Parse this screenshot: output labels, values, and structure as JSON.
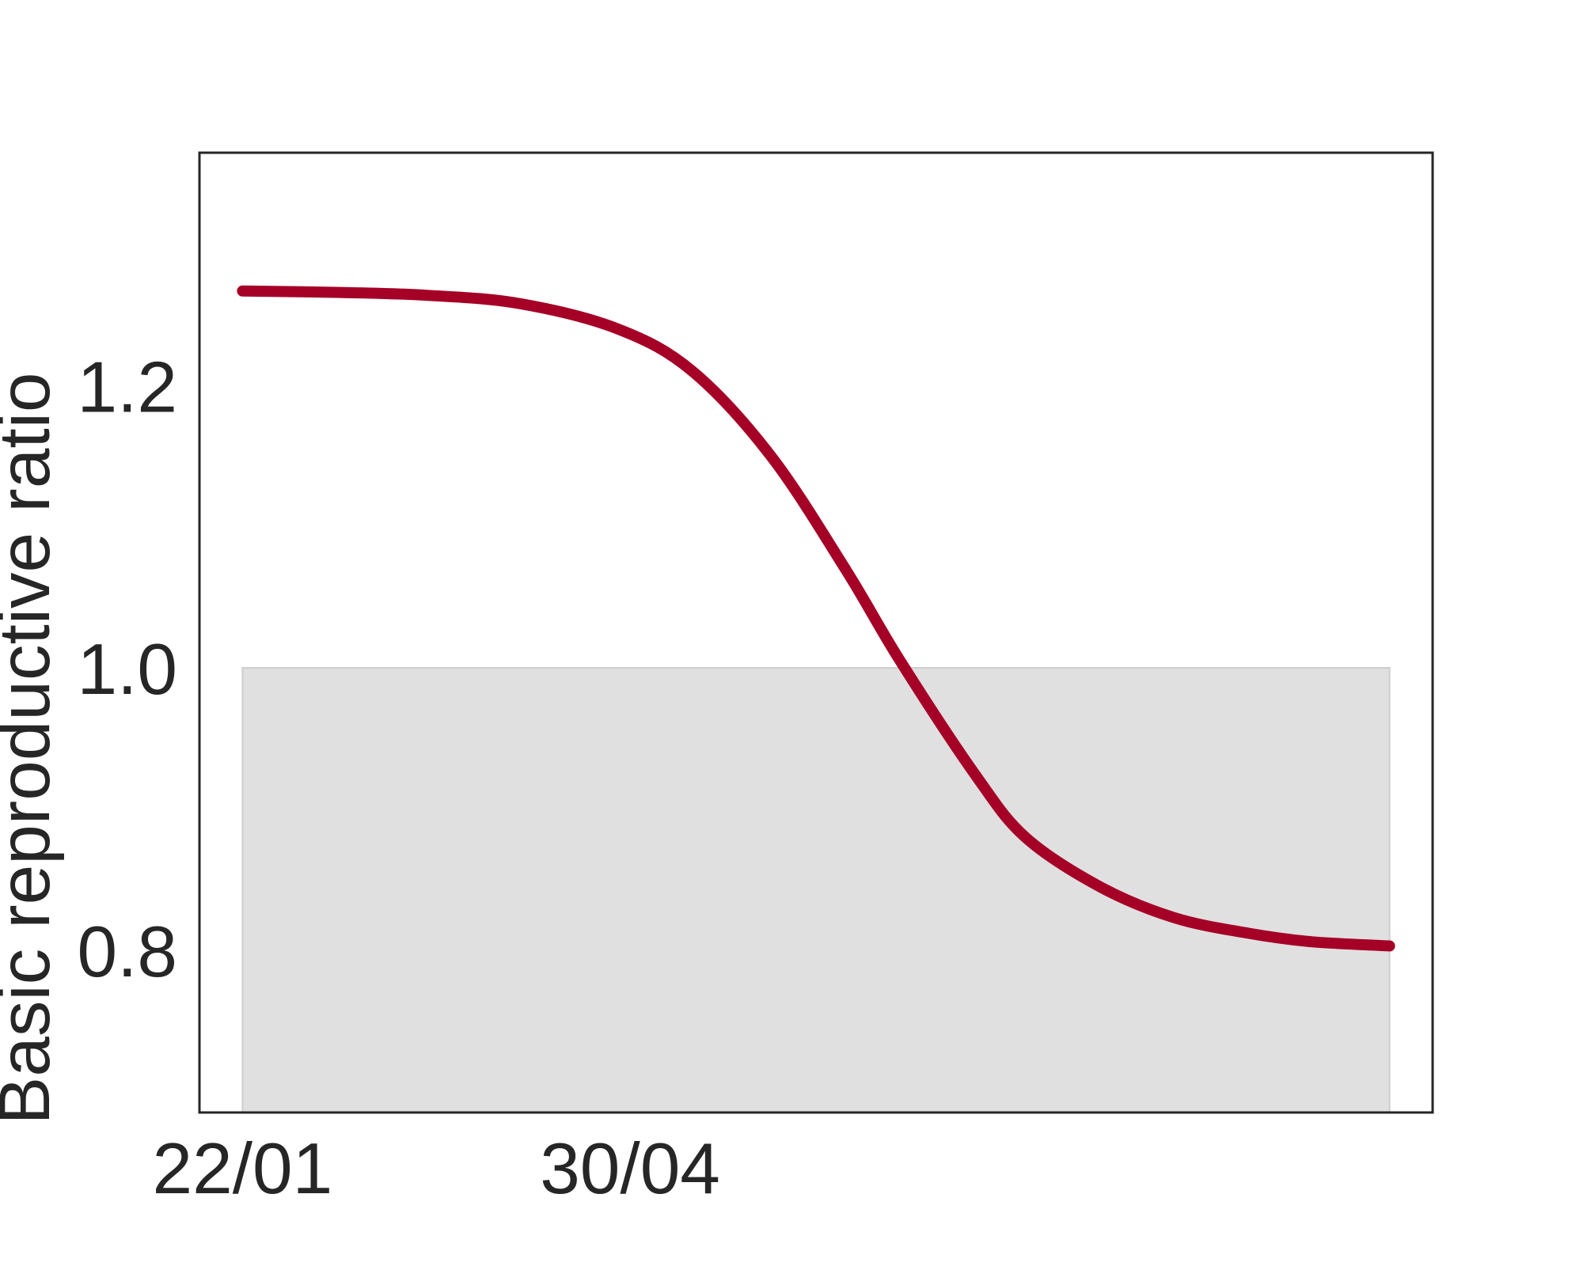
{
  "chart_data": {
    "type": "line",
    "title": "",
    "xlabel": "",
    "ylabel": "Basic reproductive ratio",
    "x_is_date": true,
    "xlim": [
      "2020-01-11",
      "2020-11-21"
    ],
    "ylim": [
      0.685,
      1.365
    ],
    "xticks": [
      {
        "value": "2020-01-22",
        "label": "22/01"
      },
      {
        "value": "2020-04-30",
        "label": "30/04"
      }
    ],
    "yticks": [
      {
        "value": 0.8,
        "label": "0.8"
      },
      {
        "value": 1.0,
        "label": "1.0"
      },
      {
        "value": 1.2,
        "label": "1.2"
      }
    ],
    "grid": false,
    "legend": "none",
    "colors": {
      "line": "#a50026",
      "shade_fill": "#e0e0e0",
      "shade_edge": "#cccccc",
      "frame": "#262626"
    },
    "shaded_region": {
      "x_start": "2020-01-22",
      "x_end": "2020-11-10",
      "y_start": 0.685,
      "y_end": 1.0
    },
    "series": [
      {
        "x": [
          "2020-01-22",
          "2020-02-16",
          "2020-03-09",
          "2020-04-02",
          "2020-04-27",
          "2020-05-16",
          "2020-06-05",
          "2020-06-24",
          "2020-07-08",
          "2020-07-27",
          "2020-08-09",
          "2020-08-28",
          "2020-09-16",
          "2020-10-05",
          "2020-10-21",
          "2020-11-10"
        ],
        "y": [
          1.267,
          1.266,
          1.264,
          1.258,
          1.24,
          1.21,
          1.15,
          1.07,
          1.005,
          0.925,
          0.88,
          0.845,
          0.823,
          0.812,
          0.806,
          0.803
        ]
      }
    ]
  }
}
